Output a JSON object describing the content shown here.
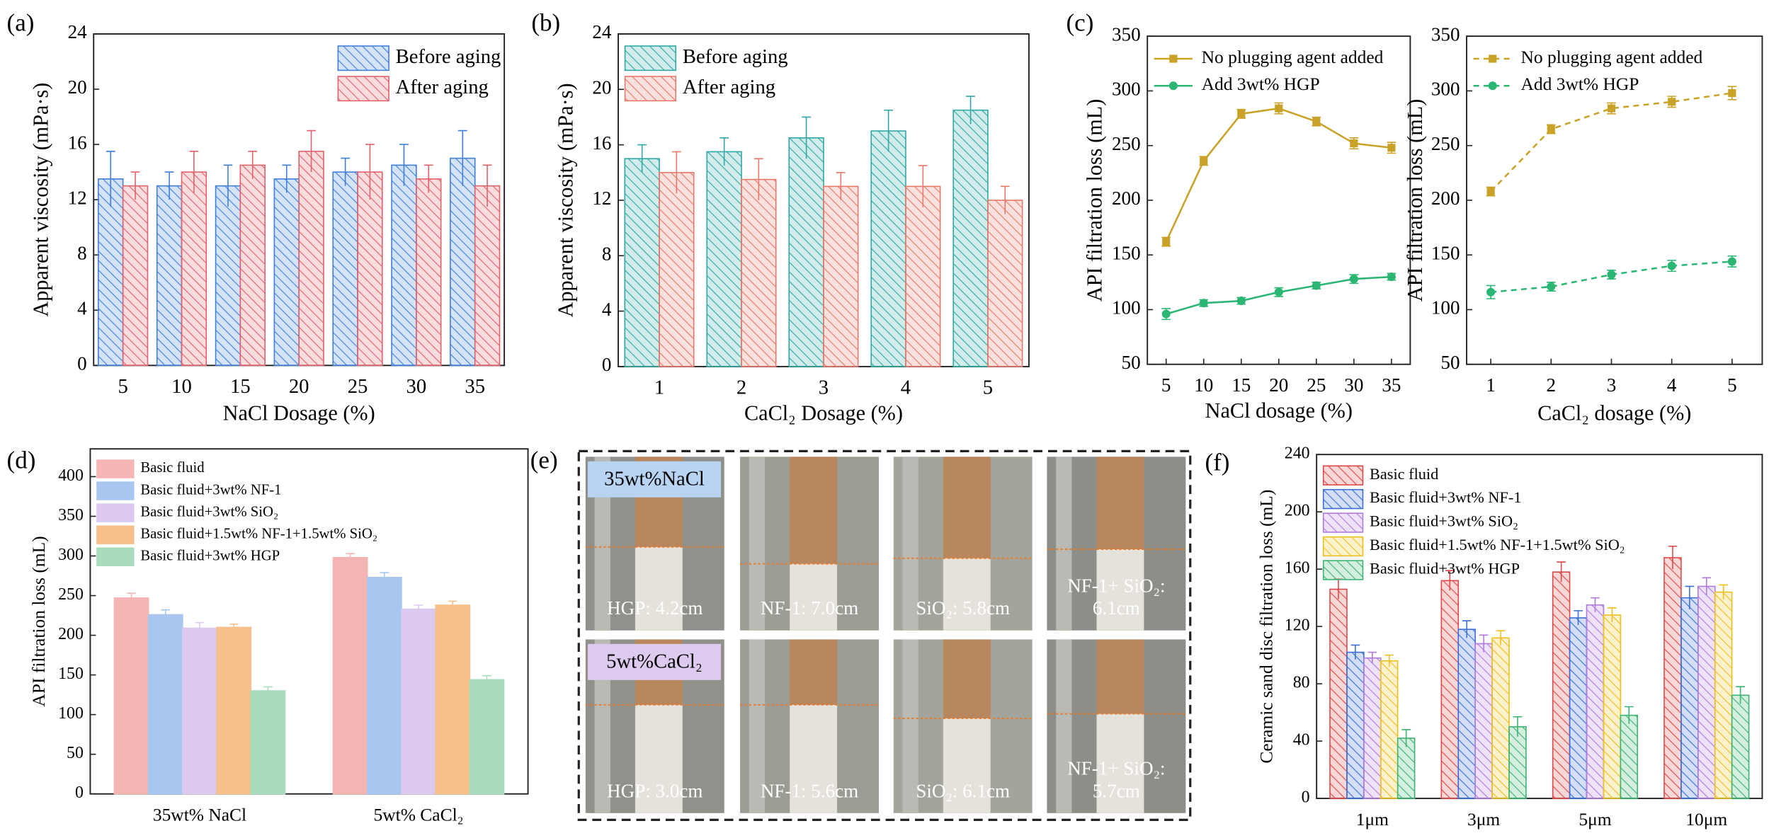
{
  "chart_data": [
    {
      "type": "bar",
      "label": "(a)",
      "xlabel": "NaCl Dosage (%)",
      "ylabel": "Apparent viscosity (mPa·s)",
      "categories": [
        "5",
        "10",
        "15",
        "20",
        "25",
        "30",
        "35"
      ],
      "series": [
        {
          "name": "Before aging",
          "color": "#3f7fdc",
          "values": [
            13.5,
            13,
            13,
            13.5,
            14,
            14.5,
            15
          ],
          "errors": [
            2,
            1,
            1.5,
            1,
            1,
            1.5,
            2
          ]
        },
        {
          "name": "After aging",
          "color": "#e2616a",
          "values": [
            13,
            14,
            14.5,
            15.5,
            14,
            13.5,
            13
          ],
          "errors": [
            1,
            1.5,
            1,
            1.5,
            2,
            1,
            1.5
          ]
        }
      ],
      "ylim": [
        0,
        24
      ],
      "yticks": [
        0,
        4,
        8,
        12,
        16,
        20,
        24
      ],
      "hatch": true,
      "legend": "top-right"
    },
    {
      "type": "bar",
      "label": "(b)",
      "xlabel": "CaCl₂ Dosage (%)",
      "ylabel": "Apparent viscosity (mPa·s)",
      "categories": [
        "1",
        "2",
        "3",
        "4",
        "5"
      ],
      "series": [
        {
          "name": "Before aging",
          "color": "#2fa8a4",
          "values": [
            15,
            15.5,
            16.5,
            17,
            18.5
          ],
          "errors": [
            1,
            1,
            1.5,
            1.5,
            1
          ]
        },
        {
          "name": "After aging",
          "color": "#e8786a",
          "values": [
            14,
            13.5,
            13,
            13,
            12
          ],
          "errors": [
            1.5,
            1.5,
            1,
            1.5,
            1
          ]
        }
      ],
      "ylim": [
        0,
        24
      ],
      "yticks": [
        0,
        4,
        8,
        12,
        16,
        20,
        24
      ],
      "hatch": true,
      "legend": "top-left"
    },
    {
      "type": "line",
      "label": "(c)",
      "xlabel": "NaCl dosage (%)",
      "ylabel": "API filtration loss (mL)",
      "x": [
        5,
        10,
        15,
        20,
        25,
        30,
        35
      ],
      "xlim": [
        2.5,
        37.5
      ],
      "xticks": [
        5,
        10,
        15,
        20,
        25,
        30,
        35
      ],
      "series": [
        {
          "name": "No plugging agent added",
          "color": "#c9a227",
          "marker": "square",
          "values": [
            162,
            236,
            279,
            284,
            272,
            252,
            248
          ],
          "errors": [
            4,
            4,
            4,
            5,
            4,
            5,
            5
          ]
        },
        {
          "name": "Add 3wt% HGP",
          "color": "#2bb673",
          "marker": "circle",
          "values": [
            96,
            106,
            108,
            116,
            122,
            128,
            130
          ],
          "errors": [
            5,
            3,
            3,
            4,
            3,
            4,
            3
          ]
        }
      ],
      "ylim": [
        50,
        350
      ],
      "yticks": [
        50,
        100,
        150,
        200,
        250,
        300,
        350
      ],
      "linestyle": "solid",
      "legend": "top-left"
    },
    {
      "type": "line",
      "xlabel": "CaCl₂ dosage (%)",
      "ylabel": "API filtration loss (mL)",
      "x": [
        1,
        2,
        3,
        4,
        5
      ],
      "xlim": [
        0.6,
        5.5
      ],
      "xticks": [
        1,
        2,
        3,
        4,
        5
      ],
      "series": [
        {
          "name": "No plugging agent added",
          "color": "#c9a227",
          "marker": "square",
          "values": [
            208,
            265,
            284,
            290,
            298
          ],
          "errors": [
            4,
            4,
            5,
            5,
            6
          ]
        },
        {
          "name": "Add 3wt% HGP",
          "color": "#2bb673",
          "marker": "circle",
          "values": [
            116,
            121,
            132,
            140,
            144
          ],
          "errors": [
            6,
            4,
            4,
            5,
            5
          ]
        }
      ],
      "ylim": [
        50,
        350
      ],
      "yticks": [
        50,
        100,
        150,
        200,
        250,
        300,
        350
      ],
      "linestyle": "dashed",
      "legend": "top-left"
    },
    {
      "type": "bar",
      "label": "(d)",
      "ylabel": "API filtration loss (mL)",
      "categories": [
        "35wt% NaCl",
        "5wt% CaCl₂"
      ],
      "series": [
        {
          "name": "Basic fluid",
          "color": "#f5b5b5",
          "values": [
            247,
            298
          ],
          "errors": [
            6,
            5
          ]
        },
        {
          "name": "Basic fluid+3wt% NF-1",
          "color": "#a9c6ef",
          "values": [
            226,
            273
          ],
          "errors": [
            6,
            6
          ]
        },
        {
          "name": "Basic fluid+3wt% SiO₂",
          "color": "#dcc9f0",
          "values": [
            209,
            233
          ],
          "errors": [
            7,
            5
          ]
        },
        {
          "name": "Basic fluid+1.5wt% NF-1+1.5wt% SiO₂",
          "color": "#f7c08a",
          "values": [
            210,
            238
          ],
          "errors": [
            4,
            5
          ]
        },
        {
          "name": "Basic fluid+3wt% HGP",
          "color": "#a8dcbc",
          "values": [
            130,
            144
          ],
          "errors": [
            5,
            5
          ]
        }
      ],
      "ylim": [
        0,
        435
      ],
      "yticks": [
        0,
        50,
        100,
        150,
        200,
        250,
        300,
        350,
        400
      ],
      "hatch": false,
      "legend": "top-left"
    },
    {
      "type": "bar",
      "label": "(f)",
      "ylabel": "Ceramic sand disc filtration loss (mL)",
      "categories": [
        "1μm",
        "3μm",
        "5μm",
        "10μm"
      ],
      "series": [
        {
          "name": "Basic fluid",
          "color": "#e04848",
          "values": [
            146,
            152,
            158,
            168
          ],
          "errors": [
            7,
            7,
            7,
            8
          ]
        },
        {
          "name": "Basic fluid+3wt% NF-1",
          "color": "#3a6fd8",
          "values": [
            102,
            118,
            126,
            140
          ],
          "errors": [
            5,
            6,
            5,
            8
          ]
        },
        {
          "name": "Basic fluid+3wt% SiO₂",
          "color": "#b07ae0",
          "values": [
            98,
            108,
            135,
            148
          ],
          "errors": [
            4,
            6,
            5,
            6
          ]
        },
        {
          "name": "Basic fluid+1.5wt% NF-1+1.5wt% SiO₂",
          "color": "#efbf1c",
          "values": [
            96,
            112,
            128,
            144
          ],
          "errors": [
            4,
            5,
            5,
            5
          ]
        },
        {
          "name": "Basic fluid+3wt% HGP",
          "color": "#3cb371",
          "values": [
            42,
            50,
            58,
            72
          ],
          "errors": [
            6,
            7,
            6,
            6
          ]
        }
      ],
      "ylim": [
        0,
        240
      ],
      "yticks": [
        0,
        40,
        80,
        120,
        160,
        200,
        240
      ],
      "hatch": true,
      "legend": "top-left"
    }
  ],
  "photo_panel": {
    "label": "(e)",
    "rows": [
      {
        "title": "35wt%NaCl",
        "captions": [
          [
            "HGP: 4.2cm"
          ],
          [
            "NF-1: 7.0cm"
          ],
          [
            "SiO₂: 5.8cm"
          ],
          [
            "NF-1+ SiO₂:",
            "6.1cm"
          ]
        ]
      },
      {
        "title": "5wt%CaCl₂",
        "captions": [
          [
            "HGP: 3.0cm"
          ],
          [
            "NF-1: 5.6cm"
          ],
          [
            "SiO₂: 6.1cm"
          ],
          [
            "NF-1+ SiO₂:",
            "5.7cm"
          ]
        ]
      }
    ]
  }
}
